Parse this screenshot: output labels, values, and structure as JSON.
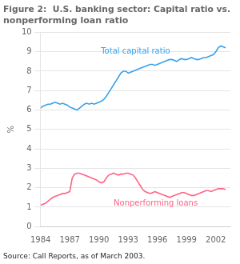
{
  "chart_data": {
    "type": "line",
    "title": "Figure 2:  U.S. banking sector: Capital ratio vs.\nnonperforming loan ratio",
    "y_label": "%",
    "annotations": [
      "Source: Call Reports, as of March 2003."
    ],
    "x": [
      1984.0,
      1984.25,
      1984.5,
      1984.75,
      1985.0,
      1985.25,
      1985.5,
      1985.75,
      1986.0,
      1986.25,
      1986.5,
      1986.75,
      1987.0,
      1987.25,
      1987.5,
      1987.75,
      1988.0,
      1988.25,
      1988.5,
      1988.75,
      1989.0,
      1989.25,
      1989.5,
      1989.75,
      1990.0,
      1990.25,
      1990.5,
      1990.75,
      1991.0,
      1991.25,
      1991.5,
      1991.75,
      1992.0,
      1992.25,
      1992.5,
      1992.75,
      1993.0,
      1993.25,
      1993.5,
      1993.75,
      1994.0,
      1994.25,
      1994.5,
      1994.75,
      1995.0,
      1995.25,
      1995.5,
      1995.75,
      1996.0,
      1996.25,
      1996.5,
      1996.75,
      1997.0,
      1997.25,
      1997.5,
      1997.75,
      1998.0,
      1998.25,
      1998.5,
      1998.75,
      1999.0,
      1999.25,
      1999.5,
      1999.75,
      2000.0,
      2000.25,
      2000.5,
      2000.75,
      2001.0,
      2001.25,
      2001.5,
      2001.75,
      2002.0,
      2002.25,
      2002.5,
      2002.75,
      2003.0
    ],
    "series": [
      {
        "name": "Total capital ratio",
        "values": [
          6.1,
          6.2,
          6.25,
          6.3,
          6.3,
          6.35,
          6.4,
          6.35,
          6.3,
          6.35,
          6.3,
          6.25,
          6.15,
          6.1,
          6.05,
          6.0,
          6.1,
          6.2,
          6.3,
          6.35,
          6.3,
          6.35,
          6.3,
          6.35,
          6.4,
          6.45,
          6.55,
          6.7,
          6.9,
          7.1,
          7.3,
          7.5,
          7.7,
          7.9,
          8.0,
          8.0,
          7.9,
          7.95,
          8.0,
          8.05,
          8.1,
          8.15,
          8.2,
          8.25,
          8.3,
          8.35,
          8.35,
          8.3,
          8.35,
          8.4,
          8.45,
          8.5,
          8.55,
          8.6,
          8.6,
          8.55,
          8.5,
          8.6,
          8.65,
          8.6,
          8.6,
          8.65,
          8.7,
          8.65,
          8.6,
          8.6,
          8.65,
          8.7,
          8.7,
          8.75,
          8.8,
          8.85,
          9.0,
          9.2,
          9.3,
          9.25,
          9.2
        ]
      },
      {
        "name": "Nonperforming loans",
        "values": [
          1.1,
          1.15,
          1.2,
          1.3,
          1.4,
          1.5,
          1.55,
          1.6,
          1.65,
          1.7,
          1.7,
          1.75,
          1.8,
          2.5,
          2.7,
          2.75,
          2.75,
          2.7,
          2.65,
          2.6,
          2.55,
          2.5,
          2.45,
          2.4,
          2.3,
          2.25,
          2.3,
          2.5,
          2.65,
          2.7,
          2.75,
          2.7,
          2.65,
          2.7,
          2.7,
          2.75,
          2.75,
          2.7,
          2.65,
          2.5,
          2.3,
          2.1,
          1.9,
          1.8,
          1.75,
          1.7,
          1.75,
          1.8,
          1.75,
          1.7,
          1.65,
          1.6,
          1.55,
          1.5,
          1.55,
          1.6,
          1.65,
          1.7,
          1.75,
          1.75,
          1.7,
          1.65,
          1.6,
          1.6,
          1.65,
          1.7,
          1.75,
          1.8,
          1.85,
          1.85,
          1.8,
          1.85,
          1.9,
          1.95,
          1.95,
          1.95,
          1.9
        ]
      }
    ],
    "xlim": [
      1984,
      2003.5
    ],
    "ylim": [
      0,
      10
    ],
    "xticks": [
      1984,
      1987,
      1990,
      1993,
      1996,
      1999,
      2002
    ],
    "yticks": [
      0,
      1,
      2,
      3,
      4,
      5,
      6,
      7,
      8,
      9,
      10
    ],
    "grid": true
  }
}
